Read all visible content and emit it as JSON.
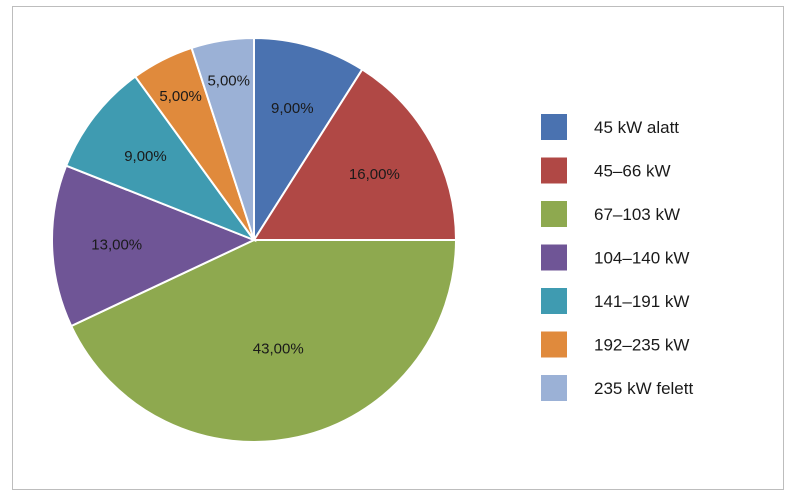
{
  "chart_data": {
    "type": "pie",
    "title": "",
    "categories": [
      "45 kW alatt",
      "45–66 kW",
      "67–103 kW",
      "104–140 kW",
      "141–191 kW",
      "192–235 kW",
      "235 kW felett"
    ],
    "values": [
      9,
      16,
      43,
      13,
      9,
      5,
      5
    ],
    "data_labels": [
      "9,00%",
      "16,00%",
      "43,00%",
      "13,00%",
      "9,00%",
      "5,00%",
      "5,00%"
    ],
    "colors": [
      "#4a72b0",
      "#b04845",
      "#8ea94f",
      "#6f5596",
      "#3f9bb1",
      "#e08a3c",
      "#9bb1d6"
    ],
    "start_angle": "12 o'clock",
    "direction": "clockwise",
    "legend_position": "right"
  }
}
